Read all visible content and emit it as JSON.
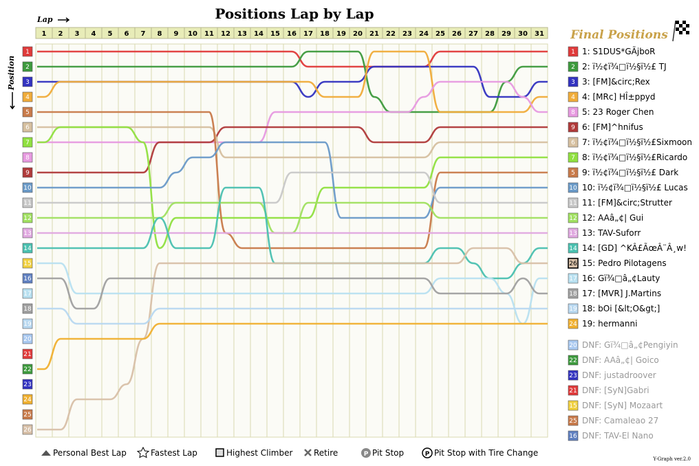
{
  "chart_data": {
    "type": "line",
    "title": "Positions Lap by Lap",
    "xlabel": "Lap",
    "ylabel": "Position",
    "laps": [
      1,
      2,
      3,
      4,
      5,
      6,
      7,
      8,
      9,
      10,
      11,
      12,
      13,
      14,
      15,
      16,
      17,
      18,
      19,
      20,
      21,
      22,
      23,
      24,
      25,
      26,
      27,
      28,
      29,
      30,
      31
    ],
    "positions": [
      1,
      2,
      3,
      4,
      5,
      6,
      7,
      8,
      9,
      10,
      11,
      12,
      13,
      14,
      15,
      16,
      17,
      18,
      19,
      20,
      21,
      22,
      23,
      24,
      25,
      26
    ],
    "side_title": "Final Positions",
    "results": [
      {
        "pos": 1,
        "label": "1: S1DUS*GÃjboR",
        "color": "#e03a3a"
      },
      {
        "pos": 2,
        "label": "2: ï½¢ï¾□ï½§ï½£ TJ",
        "color": "#3d9a3d"
      },
      {
        "pos": 3,
        "label": "3: [FM]&circ;Rex",
        "color": "#3333c0"
      },
      {
        "pos": 4,
        "label": "4: [MRc] HÎ±ppyd",
        "color": "#f0ac3a"
      },
      {
        "pos": 8,
        "label": "5: 23 Roger Chen",
        "color": "#e79ae0"
      },
      {
        "pos": 9,
        "label": "6: [FM]^hnifus",
        "color": "#b03a3a"
      },
      {
        "pos": 6,
        "label": "7: ï½¢ï¾□ï½§ï½£Sixmoon",
        "color": "#d6c0a0"
      },
      {
        "pos": 7,
        "label": "8: ï½¢ï¾□ï½§ï½£Ricardo",
        "color": "#90e040"
      },
      {
        "pos": 5,
        "label": "9: ï½¢ï¾□ï½§ï½£ Dark",
        "color": "#c87a4a"
      },
      {
        "pos": 10,
        "label": "10: ï½¢ï¾□ï½§ï½£ Lucas",
        "color": "#6a9ac8"
      },
      {
        "pos": 11,
        "label": "11: [FM]&circ;Strutter",
        "color": "#c8c8c8"
      },
      {
        "pos": 12,
        "label": "12: AAâ„¢| Gui",
        "color": "#a0e060"
      },
      {
        "pos": 13,
        "label": "13: TAV-Suforr",
        "color": "#e0a8e0"
      },
      {
        "pos": 14,
        "label": "14: [GD] ^KÂ£ÃœÂ¨Â¸w!",
        "color": "#4ac0b0"
      },
      {
        "pos": 26,
        "label": "15: Pedro Pilotagens",
        "color": "#d8c0a8"
      },
      {
        "pos": 17,
        "label": "16: Gï¾□â„¢Lauty",
        "color": "#b8e0f0"
      },
      {
        "pos": 18,
        "label": "17: [MVR] J.Martins",
        "color": "#a0a0a0"
      },
      {
        "pos": 19,
        "label": "18: bOi [&lt;O&gt;]",
        "color": "#b8d8f0"
      },
      {
        "pos": 24,
        "label": "19: hermanni",
        "color": "#f0b030"
      }
    ],
    "dnf": [
      {
        "pos": 20,
        "label": "DNF: Gï¾□â„¢Pengiyin",
        "color": "#a8c8f0"
      },
      {
        "pos": 22,
        "label": "DNF: AAâ„¢| Goico",
        "color": "#3d9a3d"
      },
      {
        "pos": 23,
        "label": "DNF: justadroover",
        "color": "#3333c0"
      },
      {
        "pos": 21,
        "label": "DNF: [SyN]Gabri",
        "color": "#e03a3a"
      },
      {
        "pos": 15,
        "label": "DNF: [SyN] Mozaart",
        "color": "#f0d040"
      },
      {
        "pos": 25,
        "label": "DNF: Camaleao 27",
        "color": "#c87a4a"
      },
      {
        "pos": 16,
        "label": "DNF: TAV-El Nano",
        "color": "#6080c0"
      }
    ],
    "legend": {
      "personal_best": "Personal Best Lap",
      "fastest": "Fastest Lap",
      "climber": "Highest Climber",
      "retire": "Retire",
      "pit": "Pit Stop",
      "pit_tire": "Pit Stop with Tire Change"
    },
    "version": "Y-Graph ver.2.0",
    "left_colors": [
      "#e03a3a",
      "#3d9a3d",
      "#3333c0",
      "#f0ac3a",
      "#c87a4a",
      "#d6c0a0",
      "#90e040",
      "#e79ae0",
      "#b03a3a",
      "#6a9ac8",
      "#c8c8c8",
      "#a0e060",
      "#e0a8e0",
      "#4ac0b0",
      "#f0d040",
      "#6080c0",
      "#b8e0f0",
      "#a0a0a0",
      "#b8d8f0",
      "#a8c8f0",
      "#e03a3a",
      "#3d9a3d",
      "#3333c0",
      "#f0b030",
      "#c87a4a",
      "#d8c0a8"
    ],
    "series": [
      {
        "color": "#e03a3a",
        "p": [
          1,
          1,
          1,
          1,
          1,
          1,
          1,
          1,
          1,
          1,
          1,
          1,
          1,
          1,
          1,
          1,
          2,
          2,
          2,
          2,
          2,
          2,
          2,
          2,
          1,
          1,
          1,
          1,
          1,
          1,
          1
        ]
      },
      {
        "color": "#3d9a3d",
        "p": [
          2,
          2,
          2,
          2,
          2,
          2,
          2,
          2,
          2,
          2,
          2,
          2,
          2,
          2,
          2,
          2,
          1,
          1,
          1,
          1,
          4,
          5,
          5,
          5,
          5,
          5,
          5,
          5,
          3,
          2,
          2
        ]
      },
      {
        "color": "#3333c0",
        "p": [
          3,
          3,
          3,
          3,
          3,
          3,
          3,
          3,
          3,
          3,
          3,
          3,
          3,
          3,
          3,
          3,
          4,
          3,
          3,
          3,
          2,
          2,
          2,
          2,
          2,
          2,
          2,
          4,
          4,
          4,
          3
        ]
      },
      {
        "color": "#f0ac3a",
        "p": [
          4,
          3,
          3,
          3,
          3,
          3,
          3,
          3,
          3,
          3,
          3,
          3,
          3,
          3,
          3,
          3,
          3,
          4,
          4,
          4,
          1,
          1,
          1,
          1,
          5,
          5,
          5,
          5,
          5,
          5,
          4
        ]
      },
      {
        "color": "#e79ae0",
        "p": [
          7,
          7,
          7,
          7,
          7,
          7,
          7,
          7,
          7,
          7,
          7,
          7,
          7,
          7,
          5,
          5,
          5,
          5,
          5,
          5,
          5,
          5,
          5,
          4,
          3,
          3,
          3,
          3,
          3,
          4,
          5
        ]
      },
      {
        "color": "#b03a3a",
        "p": [
          9,
          9,
          9,
          9,
          9,
          9,
          9,
          7,
          7,
          7,
          7,
          6,
          6,
          6,
          6,
          6,
          6,
          6,
          6,
          6,
          7,
          7,
          7,
          7,
          6,
          6,
          6,
          6,
          6,
          6,
          6
        ]
      },
      {
        "color": "#d6c0a0",
        "p": [
          6,
          6,
          6,
          6,
          6,
          6,
          6,
          6,
          6,
          6,
          6,
          8,
          8,
          8,
          8,
          8,
          8,
          8,
          8,
          8,
          8,
          8,
          8,
          8,
          7,
          7,
          7,
          7,
          7,
          7,
          7
        ]
      },
      {
        "color": "#90e040",
        "p": [
          7,
          6,
          6,
          6,
          6,
          6,
          7,
          14,
          12,
          12,
          12,
          12,
          12,
          12,
          12,
          12,
          12,
          10,
          10,
          10,
          10,
          10,
          10,
          10,
          8,
          8,
          8,
          8,
          8,
          8,
          8
        ]
      },
      {
        "color": "#c87a4a",
        "p": [
          5,
          5,
          5,
          5,
          5,
          5,
          5,
          5,
          5,
          5,
          5,
          13,
          14,
          14,
          14,
          14,
          14,
          14,
          14,
          14,
          14,
          14,
          14,
          14,
          9,
          9,
          9,
          9,
          9,
          9,
          9
        ]
      },
      {
        "color": "#6a9ac8",
        "p": [
          10,
          10,
          10,
          10,
          10,
          10,
          10,
          10,
          9,
          8,
          8,
          7,
          7,
          7,
          7,
          7,
          7,
          7,
          12,
          12,
          12,
          12,
          12,
          12,
          10,
          10,
          10,
          10,
          10,
          10,
          10
        ]
      },
      {
        "color": "#c8c8c8",
        "p": [
          11,
          11,
          11,
          11,
          11,
          11,
          11,
          11,
          11,
          11,
          11,
          11,
          11,
          11,
          11,
          9,
          9,
          9,
          9,
          9,
          9,
          9,
          9,
          9,
          11,
          11,
          11,
          11,
          11,
          11,
          11
        ]
      },
      {
        "color": "#a0e060",
        "p": [
          12,
          12,
          12,
          12,
          12,
          12,
          12,
          12,
          11,
          11,
          11,
          11,
          11,
          11,
          13,
          13,
          11,
          11,
          11,
          11,
          11,
          11,
          11,
          11,
          12,
          12,
          12,
          12,
          12,
          12,
          12
        ]
      },
      {
        "color": "#e0a8e0",
        "p": [
          13,
          13,
          13,
          13,
          13,
          13,
          13,
          13,
          13,
          13,
          13,
          13,
          13,
          13,
          13,
          13,
          13,
          13,
          13,
          13,
          13,
          13,
          13,
          13,
          13,
          13,
          13,
          13,
          13,
          13,
          13
        ]
      },
      {
        "color": "#4ac0b0",
        "p": [
          14,
          14,
          14,
          14,
          14,
          14,
          14,
          12,
          14,
          14,
          14,
          10,
          10,
          10,
          15,
          15,
          15,
          15,
          15,
          15,
          15,
          15,
          15,
          15,
          14,
          14,
          15,
          16,
          16,
          15,
          14
        ]
      },
      {
        "color": "#d8c0a8",
        "p": [
          26,
          26,
          24,
          24,
          24,
          23,
          20,
          15,
          15,
          15,
          15,
          15,
          15,
          15,
          15,
          15,
          15,
          15,
          15,
          15,
          15,
          15,
          15,
          15,
          15,
          15,
          14,
          14,
          14,
          15,
          15
        ]
      },
      {
        "color": "#b8e0f0",
        "p": [
          15,
          15,
          17,
          17,
          17,
          17,
          17,
          17,
          17,
          17,
          17,
          17,
          17,
          17,
          17,
          17,
          17,
          17,
          17,
          17,
          17,
          17,
          17,
          17,
          16,
          16,
          16,
          16,
          17,
          19,
          16
        ]
      },
      {
        "color": "#a0a0a0",
        "p": [
          16,
          16,
          18,
          18,
          16,
          16,
          16,
          16,
          16,
          16,
          16,
          16,
          16,
          16,
          16,
          16,
          16,
          16,
          16,
          16,
          16,
          16,
          16,
          16,
          17,
          17,
          17,
          17,
          17,
          16,
          17
        ]
      },
      {
        "color": "#b8d8f0",
        "p": [
          18,
          18,
          19,
          19,
          19,
          19,
          19,
          18,
          18,
          18,
          18,
          18,
          18,
          18,
          18,
          18,
          18,
          18,
          18,
          18,
          18,
          18,
          18,
          18,
          18,
          18,
          18,
          18,
          18,
          18,
          18
        ]
      },
      {
        "color": "#f0b030",
        "p": [
          22,
          20,
          20,
          20,
          20,
          20,
          20,
          19,
          19,
          19,
          19,
          19,
          19,
          19,
          19,
          19,
          19,
          19,
          19,
          19,
          19,
          19,
          19,
          19,
          19,
          19,
          19,
          19,
          19,
          19,
          19
        ]
      }
    ]
  }
}
